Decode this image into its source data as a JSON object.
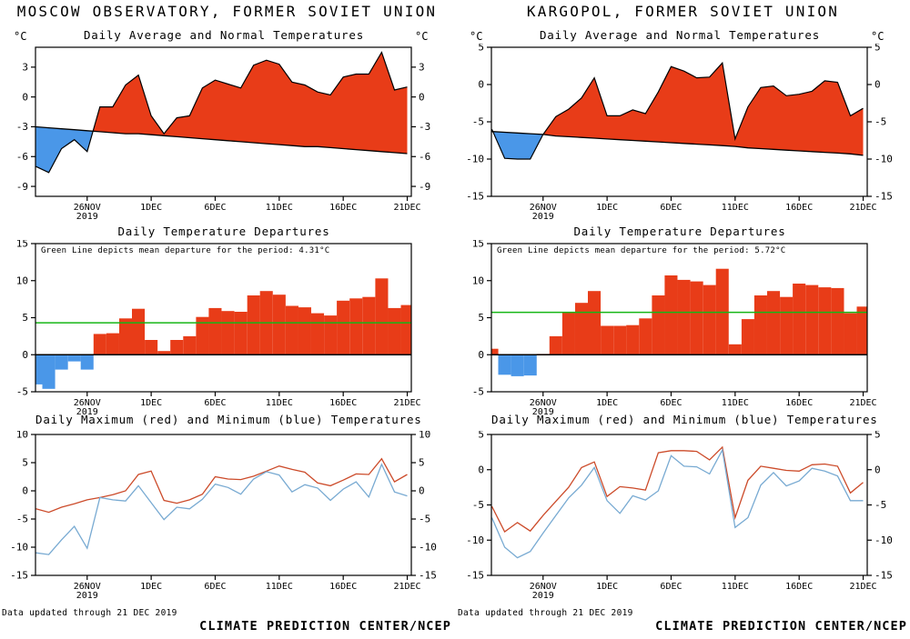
{
  "stations": [
    {
      "header": "MOSCOW OBSERVATORY, FORMER SOVIET UNION",
      "unit_label": "°C",
      "footer_note": "Data updated through 21 DEC 2019",
      "credit": "CLIMATE PREDICTION CENTER/NCEP"
    },
    {
      "header": "KARGOPOL, FORMER SOVIET UNION",
      "unit_label": "°C",
      "footer_note": "Data updated through 21 DEC 2019",
      "credit": "CLIMATE PREDICTION CENTER/NCEP"
    }
  ],
  "x_axis": {
    "tick_labels": [
      "26NOV",
      "1DEC",
      "6DEC",
      "11DEC",
      "16DEC",
      "21DEC"
    ],
    "tick_day_indices": [
      4,
      9,
      14,
      19,
      24,
      29
    ],
    "year_label": "2019",
    "num_days": 30
  },
  "colors": {
    "warm_fill": "#e83c18",
    "cold_fill": "#4a97e8",
    "mean_line": "#16b616",
    "max_line": "#cc4b2a",
    "min_line": "#78aad2",
    "axis": "#000000"
  },
  "chart_data": [
    {
      "station": "MOSCOW OBSERVATORY, FORMER SOVIET UNION",
      "type": "area",
      "title": "Daily Average and Normal Temperatures",
      "unit": "°C",
      "ylim": [
        -10,
        5
      ],
      "yticks": [
        3,
        0,
        -3,
        -6,
        -9
      ],
      "above_color": "#e83c18",
      "below_color": "#4a97e8",
      "series": [
        {
          "name": "daily average",
          "values": [
            -7.0,
            -7.6,
            -5.2,
            -4.3,
            -5.5,
            -1.0,
            -1.0,
            1.2,
            2.2,
            -1.9,
            -3.7,
            -2.1,
            -1.9,
            0.9,
            1.7,
            1.3,
            0.9,
            3.2,
            3.7,
            3.3,
            1.5,
            1.2,
            0.5,
            0.2,
            2.0,
            2.3,
            2.3,
            4.5,
            0.7,
            1.0
          ]
        },
        {
          "name": "normal",
          "values": [
            -3.0,
            -3.1,
            -3.2,
            -3.3,
            -3.4,
            -3.5,
            -3.6,
            -3.7,
            -3.7,
            -3.8,
            -3.9,
            -4.0,
            -4.1,
            -4.2,
            -4.3,
            -4.4,
            -4.5,
            -4.6,
            -4.7,
            -4.8,
            -4.9,
            -5.0,
            -5.0,
            -5.1,
            -5.2,
            -5.3,
            -5.4,
            -5.5,
            -5.6,
            -5.7
          ]
        }
      ]
    },
    {
      "station": "MOSCOW OBSERVATORY, FORMER SOVIET UNION",
      "type": "bar",
      "title": "Daily Temperature Departures",
      "note": "Green Line depicts mean departure for the period: 4.31°C",
      "mean_departure": 4.31,
      "ylim": [
        -5,
        15
      ],
      "yticks": [
        15,
        10,
        5,
        0,
        -5
      ],
      "pos_color": "#e83c18",
      "neg_color": "#4a97e8",
      "mean_color": "#16b616",
      "values": [
        -4.0,
        -4.6,
        -2.0,
        -0.9,
        -2.0,
        2.8,
        2.9,
        4.9,
        6.2,
        2.0,
        0.5,
        2.0,
        2.5,
        5.1,
        6.3,
        5.9,
        5.8,
        8.0,
        8.6,
        8.1,
        6.6,
        6.4,
        5.6,
        5.3,
        7.3,
        7.6,
        7.8,
        10.3,
        6.3,
        6.7
      ]
    },
    {
      "station": "MOSCOW OBSERVATORY, FORMER SOVIET UNION",
      "type": "line",
      "title": "Daily Maximum (red) and Minimum (blue) Temperatures",
      "ylim": [
        -15,
        10
      ],
      "yticks": [
        10,
        5,
        0,
        -5,
        -10,
        -15
      ],
      "series": [
        {
          "name": "maximum",
          "color": "#cc4b2a",
          "values": [
            -3.2,
            -3.8,
            -2.9,
            -2.3,
            -1.6,
            -1.2,
            -0.7,
            0.0,
            2.9,
            3.5,
            -1.7,
            -2.2,
            -1.6,
            -0.6,
            2.5,
            2.1,
            2.0,
            2.6,
            3.5,
            4.4,
            3.8,
            3.3,
            1.4,
            0.9,
            1.9,
            3.0,
            2.9,
            5.7,
            1.6,
            2.9
          ]
        },
        {
          "name": "minimum",
          "color": "#78aad2",
          "values": [
            -11.0,
            -11.3,
            -8.7,
            -6.3,
            -10.2,
            -1.2,
            -1.6,
            -1.8,
            0.9,
            -2.1,
            -5.1,
            -2.9,
            -3.2,
            -1.5,
            1.2,
            0.6,
            -0.6,
            2.1,
            3.4,
            2.8,
            -0.2,
            1.1,
            0.5,
            -1.7,
            0.3,
            1.6,
            -1.1,
            4.7,
            -0.2,
            -0.9
          ]
        }
      ]
    },
    {
      "station": "KARGOPOL, FORMER SOVIET UNION",
      "type": "area",
      "title": "Daily Average and Normal Temperatures",
      "unit": "°C",
      "ylim": [
        -15,
        5
      ],
      "yticks": [
        5,
        0,
        -5,
        -10,
        -15
      ],
      "above_color": "#e83c18",
      "below_color": "#4a97e8",
      "series": [
        {
          "name": "daily average",
          "values": [
            -6.0,
            -9.9,
            -10.0,
            -10.0,
            -6.7,
            -4.3,
            -3.3,
            -1.8,
            0.9,
            -4.2,
            -4.2,
            -3.4,
            -3.9,
            -1.0,
            2.4,
            1.8,
            0.9,
            1.0,
            2.9,
            -7.3,
            -3.0,
            -0.4,
            -0.2,
            -1.5,
            -1.3,
            -0.9,
            0.5,
            0.3,
            -4.2,
            -3.2
          ]
        },
        {
          "name": "normal",
          "values": [
            -6.3,
            -6.4,
            -6.5,
            -6.6,
            -6.7,
            -6.9,
            -7.0,
            -7.1,
            -7.2,
            -7.3,
            -7.4,
            -7.5,
            -7.6,
            -7.7,
            -7.8,
            -7.9,
            -8.0,
            -8.1,
            -8.2,
            -8.3,
            -8.5,
            -8.6,
            -8.7,
            -8.8,
            -8.9,
            -9.0,
            -9.1,
            -9.2,
            -9.3,
            -9.5
          ]
        }
      ]
    },
    {
      "station": "KARGOPOL, FORMER SOVIET UNION",
      "type": "bar",
      "title": "Daily Temperature Departures",
      "note": "Green Line depicts mean departure for the period: 5.72°C",
      "mean_departure": 5.72,
      "ylim": [
        -5,
        15
      ],
      "yticks": [
        15,
        10,
        5,
        0,
        -5
      ],
      "pos_color": "#e83c18",
      "neg_color": "#4a97e8",
      "mean_color": "#16b616",
      "values": [
        0.8,
        -2.7,
        -2.9,
        -2.8,
        0.1,
        2.5,
        5.8,
        7.0,
        8.6,
        3.9,
        3.9,
        4.0,
        4.9,
        8.0,
        10.7,
        10.1,
        9.9,
        9.4,
        11.6,
        1.4,
        4.8,
        8.0,
        8.6,
        7.8,
        9.6,
        9.4,
        9.1,
        9.0,
        5.6,
        6.5
      ]
    },
    {
      "station": "KARGOPOL, FORMER SOVIET UNION",
      "type": "line",
      "title": "Daily Maximum (red) and Minimum (blue) Temperatures",
      "ylim": [
        -15,
        5
      ],
      "yticks": [
        5,
        0,
        -5,
        -10,
        -15
      ],
      "series": [
        {
          "name": "maximum",
          "color": "#cc4b2a",
          "values": [
            -5.2,
            -8.8,
            -7.5,
            -8.7,
            -6.5,
            -4.5,
            -2.5,
            0.3,
            1.1,
            -3.8,
            -2.4,
            -2.6,
            -2.9,
            2.4,
            2.7,
            2.7,
            2.6,
            1.4,
            3.2,
            -6.8,
            -1.5,
            0.5,
            0.2,
            -0.1,
            -0.2,
            0.7,
            0.8,
            0.5,
            -3.3,
            -1.8
          ]
        },
        {
          "name": "minimum",
          "color": "#78aad2",
          "values": [
            -6.8,
            -11.0,
            -12.5,
            -11.6,
            -9.0,
            -6.5,
            -4.0,
            -2.2,
            0.3,
            -4.4,
            -6.2,
            -3.7,
            -4.3,
            -3.0,
            2.0,
            0.5,
            0.4,
            -0.6,
            2.8,
            -8.2,
            -6.8,
            -2.2,
            -0.4,
            -2.3,
            -1.6,
            0.2,
            -0.2,
            -0.9,
            -4.4,
            -4.4
          ]
        }
      ]
    }
  ]
}
